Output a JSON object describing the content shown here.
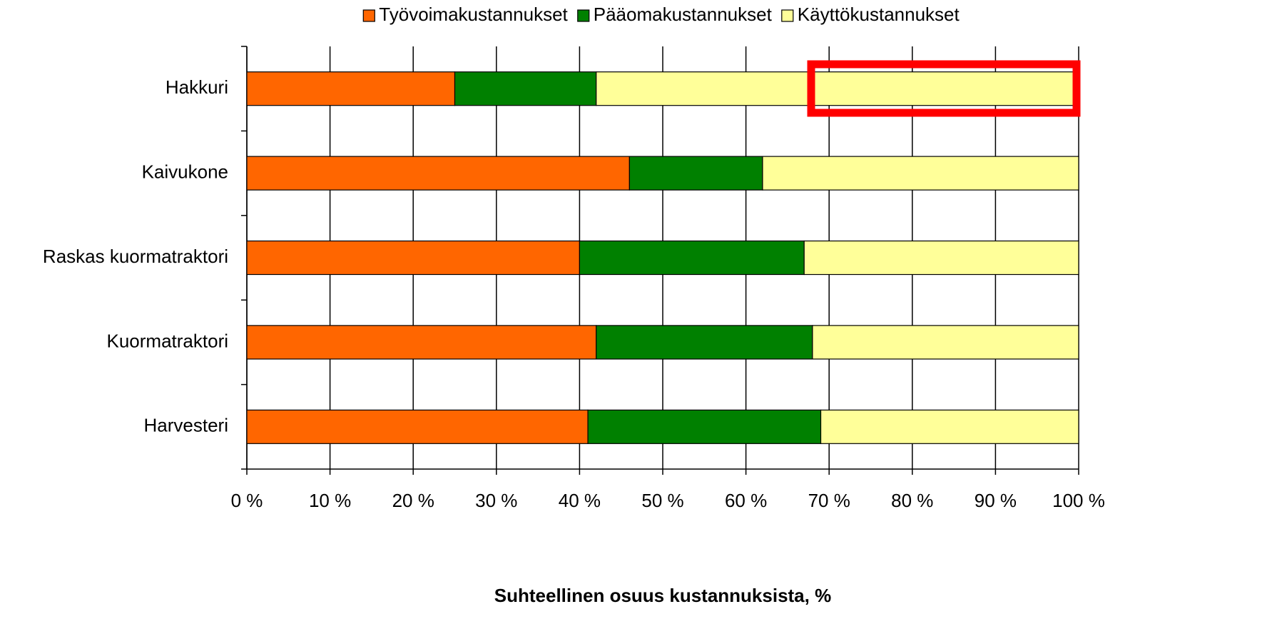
{
  "chart_data": {
    "type": "stacked_barh",
    "xlabel": "Suhteellinen osuus kustannuksista, %",
    "categories": [
      "Hakkuri",
      "Kaivukone",
      "Raskas kuormatraktori",
      "Kuormatraktori",
      "Harvesteri"
    ],
    "series": [
      {
        "name": "Työvoimakustannukset",
        "color": "#ff6600",
        "values": [
          25,
          46,
          40,
          42,
          41
        ]
      },
      {
        "name": "Pääomakustannukset",
        "color": "#008000",
        "values": [
          17,
          16,
          27,
          26,
          28
        ]
      },
      {
        "name": "Käyttökustannukset",
        "color": "#ffff99",
        "values": [
          58,
          38,
          33,
          32,
          31
        ]
      }
    ],
    "xlim": [
      0,
      100
    ],
    "xticks": [
      {
        "value": 0,
        "label": "0 %"
      },
      {
        "value": 10,
        "label": "10 %"
      },
      {
        "value": 20,
        "label": "20 %"
      },
      {
        "value": 30,
        "label": "30 %"
      },
      {
        "value": 40,
        "label": "40 %"
      },
      {
        "value": 50,
        "label": "50 %"
      },
      {
        "value": 60,
        "label": "60 %"
      },
      {
        "value": 70,
        "label": "70 %"
      },
      {
        "value": 80,
        "label": "80 %"
      },
      {
        "value": 90,
        "label": "90 %"
      },
      {
        "value": 100,
        "label": "100 %"
      }
    ],
    "grid": true,
    "legend": "top"
  }
}
